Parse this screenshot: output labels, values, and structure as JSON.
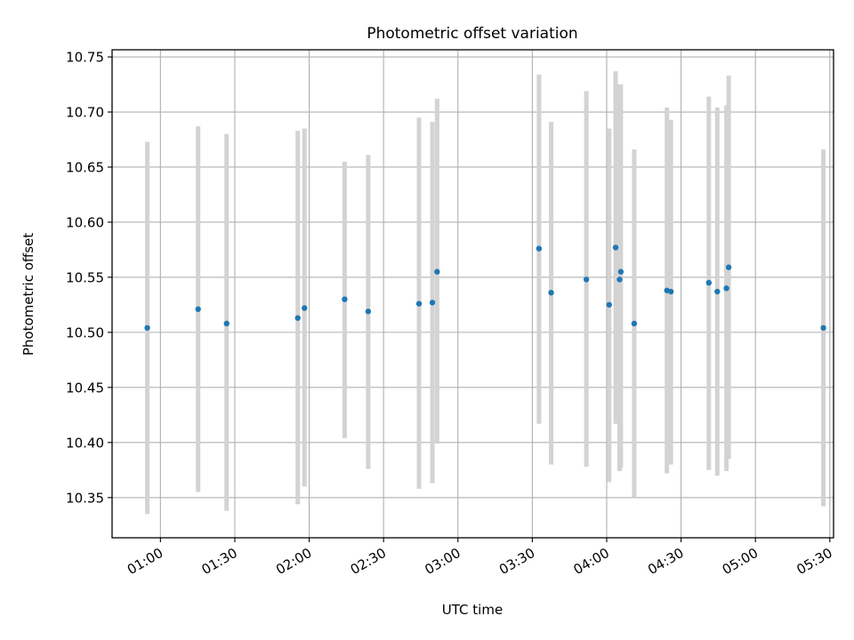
{
  "chart_data": {
    "type": "scatter",
    "title": "Photometric offset variation",
    "xlabel": "UTC time",
    "ylabel": "Photometric offset",
    "xlim_minutes": [
      40.5,
      331.5
    ],
    "ylim": [
      10.3135,
      10.7565
    ],
    "grid": true,
    "x_ticks": [
      {
        "minutes": 60,
        "label": "01:00"
      },
      {
        "minutes": 90,
        "label": "01:30"
      },
      {
        "minutes": 120,
        "label": "02:00"
      },
      {
        "minutes": 150,
        "label": "02:30"
      },
      {
        "minutes": 180,
        "label": "03:00"
      },
      {
        "minutes": 210,
        "label": "03:30"
      },
      {
        "minutes": 240,
        "label": "04:00"
      },
      {
        "minutes": 270,
        "label": "04:30"
      },
      {
        "minutes": 300,
        "label": "05:00"
      },
      {
        "minutes": 330,
        "label": "05:30"
      }
    ],
    "y_ticks": [
      "10.35",
      "10.40",
      "10.45",
      "10.50",
      "10.55",
      "10.60",
      "10.65",
      "10.70",
      "10.75"
    ],
    "marker_color": "#1f77b4",
    "errorbar_color": "#d3d3d3",
    "points": [
      {
        "x": 54.7,
        "y": 10.504,
        "lo": 10.335,
        "hi": 10.673
      },
      {
        "x": 75.2,
        "y": 10.521,
        "lo": 10.355,
        "hi": 10.687
      },
      {
        "x": 86.7,
        "y": 10.508,
        "lo": 10.338,
        "hi": 10.68
      },
      {
        "x": 115.4,
        "y": 10.513,
        "lo": 10.344,
        "hi": 10.683
      },
      {
        "x": 118.1,
        "y": 10.522,
        "lo": 10.36,
        "hi": 10.685
      },
      {
        "x": 134.3,
        "y": 10.53,
        "lo": 10.404,
        "hi": 10.655
      },
      {
        "x": 143.8,
        "y": 10.519,
        "lo": 10.376,
        "hi": 10.661
      },
      {
        "x": 164.3,
        "y": 10.526,
        "lo": 10.358,
        "hi": 10.695
      },
      {
        "x": 169.7,
        "y": 10.527,
        "lo": 10.363,
        "hi": 10.691
      },
      {
        "x": 171.6,
        "y": 10.555,
        "lo": 10.399,
        "hi": 10.712
      },
      {
        "x": 212.7,
        "y": 10.576,
        "lo": 10.417,
        "hi": 10.734
      },
      {
        "x": 217.6,
        "y": 10.536,
        "lo": 10.38,
        "hi": 10.691
      },
      {
        "x": 231.8,
        "y": 10.548,
        "lo": 10.378,
        "hi": 10.719
      },
      {
        "x": 241.0,
        "y": 10.525,
        "lo": 10.364,
        "hi": 10.685
      },
      {
        "x": 243.6,
        "y": 10.577,
        "lo": 10.417,
        "hi": 10.737
      },
      {
        "x": 245.2,
        "y": 10.548,
        "lo": 10.374,
        "hi": 10.725
      },
      {
        "x": 245.7,
        "y": 10.555,
        "lo": 10.377,
        "hi": 10.725
      },
      {
        "x": 251.1,
        "y": 10.508,
        "lo": 10.35,
        "hi": 10.666
      },
      {
        "x": 264.3,
        "y": 10.538,
        "lo": 10.372,
        "hi": 10.704
      },
      {
        "x": 265.9,
        "y": 10.537,
        "lo": 10.38,
        "hi": 10.693
      },
      {
        "x": 281.2,
        "y": 10.545,
        "lo": 10.375,
        "hi": 10.714
      },
      {
        "x": 284.6,
        "y": 10.537,
        "lo": 10.37,
        "hi": 10.704
      },
      {
        "x": 288.3,
        "y": 10.54,
        "lo": 10.374,
        "hi": 10.706
      },
      {
        "x": 289.2,
        "y": 10.559,
        "lo": 10.385,
        "hi": 10.733
      },
      {
        "x": 327.4,
        "y": 10.504,
        "lo": 10.342,
        "hi": 10.666
      }
    ]
  }
}
